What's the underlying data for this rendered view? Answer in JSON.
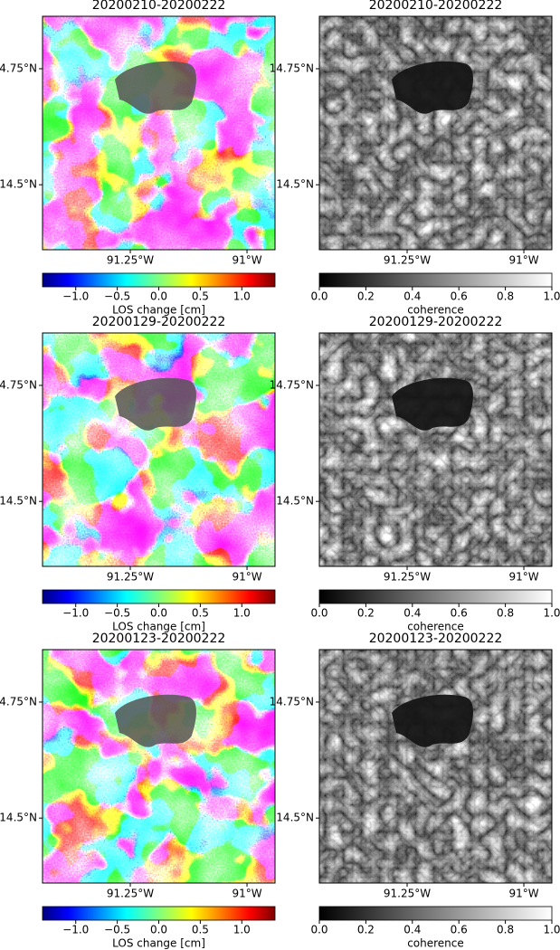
{
  "panels": [
    {
      "title": "20200210-20200222",
      "colormap": "jet",
      "xlim": [
        -91.438,
        -90.94
      ],
      "ylim": [
        14.36,
        14.863
      ],
      "xticks": [
        {
          "value": -91.25,
          "label": "91.25°W"
        },
        {
          "value": -91,
          "label": "91°W"
        }
      ],
      "yticks": [
        {
          "value": 14.75,
          "label": "14.75°N"
        },
        {
          "value": 14.5,
          "label": "14.5°N"
        }
      ],
      "colorbar": {
        "label": "LOS change [cm]",
        "limits": [
          -1.4,
          1.4
        ],
        "ticks": [
          {
            "value": -1,
            "label": "−1.0"
          },
          {
            "value": -0.5,
            "label": "−0.5"
          },
          {
            "value": 0,
            "label": "0.0"
          },
          {
            "value": 0.5,
            "label": "0.5"
          },
          {
            "value": 1,
            "label": "1.0"
          }
        ]
      }
    },
    {
      "title": "20200210-20200222",
      "colormap": "gray",
      "xlim": [
        -91.438,
        -90.94
      ],
      "ylim": [
        14.36,
        14.863
      ],
      "xticks": [
        {
          "value": -91.25,
          "label": "91.25°W"
        },
        {
          "value": -91,
          "label": "91°W"
        }
      ],
      "yticks": [
        {
          "value": 14.75,
          "label": "14.75°N"
        },
        {
          "value": 14.5,
          "label": "14.5°N"
        }
      ],
      "colorbar": {
        "label": "coherence",
        "limits": [
          0,
          1
        ],
        "ticks": [
          {
            "value": 0,
            "label": "0.0"
          },
          {
            "value": 0.2,
            "label": "0.2"
          },
          {
            "value": 0.4,
            "label": "0.4"
          },
          {
            "value": 0.6,
            "label": "0.6"
          },
          {
            "value": 0.8,
            "label": "0.8"
          },
          {
            "value": 1,
            "label": "1.0"
          }
        ]
      }
    },
    {
      "title": "20200129-20200222",
      "colormap": "jet",
      "xlim": [
        -91.438,
        -90.94
      ],
      "ylim": [
        14.36,
        14.863
      ],
      "xticks": [
        {
          "value": -91.25,
          "label": "91.25°W"
        },
        {
          "value": -91,
          "label": "91°W"
        }
      ],
      "yticks": [
        {
          "value": 14.75,
          "label": "14.75°N"
        },
        {
          "value": 14.5,
          "label": "14.5°N"
        }
      ],
      "colorbar": {
        "label": "LOS change [cm]",
        "limits": [
          -1.4,
          1.4
        ],
        "ticks": [
          {
            "value": -1,
            "label": "−1.0"
          },
          {
            "value": -0.5,
            "label": "−0.5"
          },
          {
            "value": 0,
            "label": "0.0"
          },
          {
            "value": 0.5,
            "label": "0.5"
          },
          {
            "value": 1,
            "label": "1.0"
          }
        ]
      }
    },
    {
      "title": "20200129-20200222",
      "colormap": "gray",
      "xlim": [
        -91.438,
        -90.94
      ],
      "ylim": [
        14.36,
        14.863
      ],
      "xticks": [
        {
          "value": -91.25,
          "label": "91.25°W"
        },
        {
          "value": -91,
          "label": "91°W"
        }
      ],
      "yticks": [
        {
          "value": 14.75,
          "label": "14.75°N"
        },
        {
          "value": 14.5,
          "label": "14.5°N"
        }
      ],
      "colorbar": {
        "label": "coherence",
        "limits": [
          0,
          1
        ],
        "ticks": [
          {
            "value": 0,
            "label": "0.0"
          },
          {
            "value": 0.2,
            "label": "0.2"
          },
          {
            "value": 0.4,
            "label": "0.4"
          },
          {
            "value": 0.6,
            "label": "0.6"
          },
          {
            "value": 0.8,
            "label": "0.8"
          },
          {
            "value": 1,
            "label": "1.0"
          }
        ]
      }
    },
    {
      "title": "20200123-20200222",
      "colormap": "jet",
      "xlim": [
        -91.438,
        -90.94
      ],
      "ylim": [
        14.36,
        14.863
      ],
      "xticks": [
        {
          "value": -91.25,
          "label": "91.25°W"
        },
        {
          "value": -91,
          "label": "91°W"
        }
      ],
      "yticks": [
        {
          "value": 14.75,
          "label": "14.75°N"
        },
        {
          "value": 14.5,
          "label": "14.5°N"
        }
      ],
      "colorbar": {
        "label": "LOS change [cm]",
        "limits": [
          -1.4,
          1.4
        ],
        "ticks": [
          {
            "value": -1,
            "label": "−1.0"
          },
          {
            "value": -0.5,
            "label": "−0.5"
          },
          {
            "value": 0,
            "label": "0.0"
          },
          {
            "value": 0.5,
            "label": "0.5"
          },
          {
            "value": 1,
            "label": "1.0"
          }
        ]
      }
    },
    {
      "title": "20200123-20200222",
      "colormap": "gray",
      "xlim": [
        -91.438,
        -90.94
      ],
      "ylim": [
        14.36,
        14.863
      ],
      "xticks": [
        {
          "value": -91.25,
          "label": "91.25°W"
        },
        {
          "value": -91,
          "label": "91°W"
        }
      ],
      "yticks": [
        {
          "value": 14.75,
          "label": "14.75°N"
        },
        {
          "value": 14.5,
          "label": "14.5°N"
        }
      ],
      "colorbar": {
        "label": "coherence",
        "limits": [
          0,
          1
        ],
        "ticks": [
          {
            "value": 0,
            "label": "0.0"
          },
          {
            "value": 0.2,
            "label": "0.2"
          },
          {
            "value": 0.4,
            "label": "0.4"
          },
          {
            "value": 0.6,
            "label": "0.6"
          },
          {
            "value": 0.8,
            "label": "0.8"
          },
          {
            "value": 1,
            "label": "1.0"
          }
        ]
      }
    }
  ]
}
